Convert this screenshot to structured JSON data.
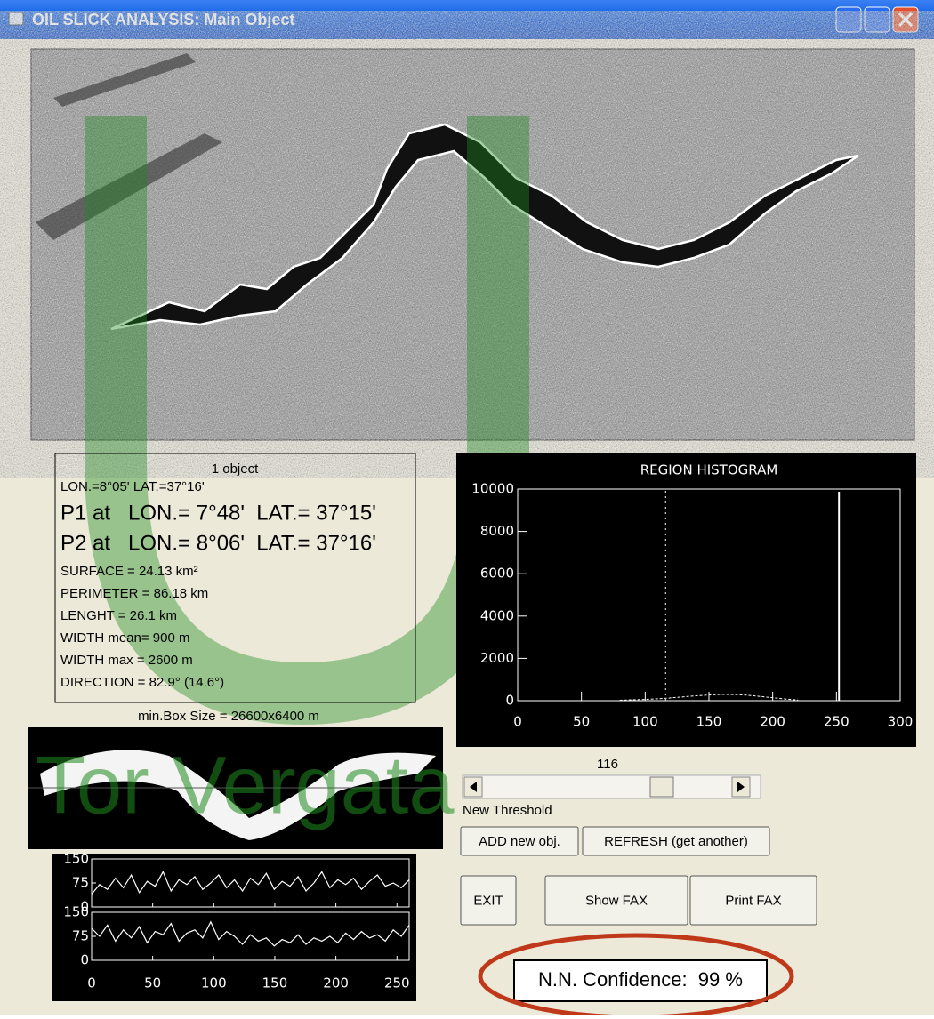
{
  "window": {
    "title": "OIL SLICK ANALYSIS:  Main Object"
  },
  "info": {
    "count": "1 object",
    "position": "LON.=8°05' LAT.=37°16'",
    "p1": "P1 at   LON.= 7°48'  LAT.= 37°15'",
    "p2": "P2 at   LON.= 8°06'  LAT.= 37°16'",
    "lines": [
      "SURFACE    = 24.13 km²",
      "PERIMETER  = 86.18 km",
      "LENGHT      = 26.1 km",
      "WIDTH mean=  900 m",
      "WIDTH max  = 2600 m",
      "DIRECTION  = 82.9° (14.6°)"
    ],
    "box_size": "min.Box Size = 26600x6400 m"
  },
  "chart_data": [
    {
      "type": "line",
      "title": "REGION HISTOGRAM",
      "x": [
        80,
        90,
        100,
        110,
        120,
        130,
        140,
        150,
        160,
        170,
        180,
        190,
        200,
        210,
        220
      ],
      "values": [
        20,
        40,
        60,
        90,
        130,
        180,
        230,
        270,
        300,
        290,
        260,
        200,
        140,
        80,
        30
      ],
      "color": "#ffffff",
      "xlim": [
        0,
        300
      ],
      "ylim": [
        0,
        10000
      ],
      "xticks": [
        0,
        50,
        100,
        150,
        200,
        250,
        300
      ],
      "yticks": [
        0,
        2000,
        4000,
        6000,
        8000,
        10000
      ],
      "reference_x": 252
    },
    {
      "type": "line",
      "x": [
        0,
        6.5,
        13,
        19.5,
        26,
        32.5,
        39,
        45.5,
        52,
        58.5,
        65,
        71.5,
        78,
        84.5,
        91,
        97.5,
        104,
        110.5,
        117,
        123.5,
        130,
        136.5,
        143,
        149.5,
        156,
        162.5,
        169,
        175.5,
        182,
        188.5,
        195,
        201.5,
        208,
        214.5,
        221,
        227.5,
        234,
        240.5,
        247,
        253.5,
        260
      ],
      "xlim": [
        0,
        260
      ],
      "xticks": [
        0,
        50,
        100,
        150,
        200,
        250
      ],
      "ylim": [
        0,
        150
      ],
      "yticks": [
        0,
        75,
        150
      ],
      "series": [
        {
          "color": "#ffffff",
          "values": [
            40,
            70,
            55,
            90,
            60,
            100,
            45,
            80,
            65,
            110,
            50,
            85,
            70,
            95,
            55,
            75,
            100,
            60,
            85,
            50,
            90,
            70,
            105,
            55,
            80,
            65,
            95,
            50,
            75,
            110,
            60,
            85,
            70,
            90,
            55,
            80,
            100,
            65,
            75,
            60,
            85
          ]
        },
        {
          "color": "#ffffff",
          "values": [
            100,
            75,
            110,
            60,
            95,
            70,
            105,
            55,
            90,
            80,
            115,
            60,
            85,
            95,
            70,
            120,
            65,
            90,
            75,
            50,
            80,
            60,
            70,
            45,
            65,
            55,
            80,
            50,
            70,
            60,
            75,
            55,
            85,
            65,
            90,
            70,
            80,
            60,
            95,
            75,
            110
          ]
        }
      ]
    }
  ],
  "threshold": {
    "value": 116,
    "label": "New Threshold"
  },
  "buttons": [
    "ADD new obj.",
    "REFRESH (get another)",
    "EXIT",
    "Show FAX",
    "Print FAX"
  ],
  "confidence": "N.N. Confidence:  99 %",
  "watermark": "Tor Vergata"
}
